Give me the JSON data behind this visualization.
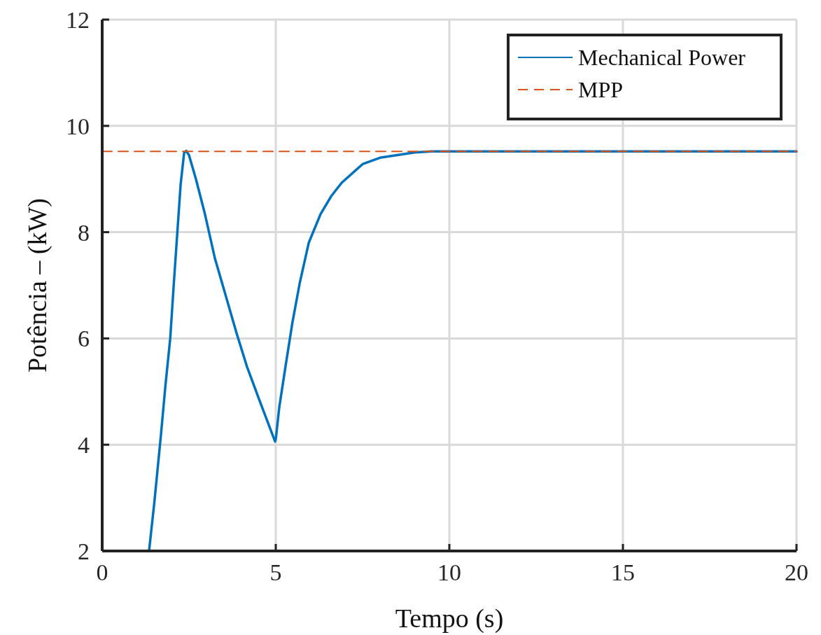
{
  "chart_data": {
    "type": "line",
    "xlabel": "Tempo (s)",
    "ylabel": "Potência – (kW)",
    "xlim": [
      0,
      20
    ],
    "ylim": [
      2,
      12
    ],
    "xticks": [
      0,
      5,
      10,
      15,
      20
    ],
    "yticks": [
      2,
      4,
      6,
      8,
      10,
      12
    ],
    "grid": true,
    "legend": "top right",
    "series": [
      {
        "name": "Mechanical Power",
        "color": "#0072bd",
        "line_style": "solid",
        "x": [
          1.35,
          1.5,
          1.69,
          1.82,
          1.96,
          2.06,
          2.16,
          2.26,
          2.36,
          2.42,
          2.5,
          2.7,
          2.96,
          3.25,
          3.57,
          3.87,
          4.17,
          4.55,
          4.98,
          5.0,
          5.1,
          5.28,
          5.48,
          5.69,
          5.95,
          6.29,
          6.6,
          6.9,
          7.5,
          8.0,
          8.5,
          9.0,
          9.5,
          10.1,
          12,
          15,
          20
        ],
        "values": [
          2,
          2.9,
          4.17,
          5.1,
          6.0,
          7.0,
          7.95,
          8.9,
          9.49,
          9.53,
          9.45,
          9.0,
          8.34,
          7.5,
          6.78,
          6.1,
          5.47,
          4.8,
          4.06,
          4.1,
          4.7,
          5.47,
          6.3,
          7.04,
          7.8,
          8.34,
          8.68,
          8.93,
          9.28,
          9.4,
          9.45,
          9.5,
          9.52,
          9.52,
          9.52,
          9.52,
          9.52
        ]
      },
      {
        "name": "MPP",
        "color": "#d95319",
        "line_style": "dashed",
        "x": [
          0,
          20
        ],
        "values": [
          9.52,
          9.52
        ]
      }
    ]
  }
}
